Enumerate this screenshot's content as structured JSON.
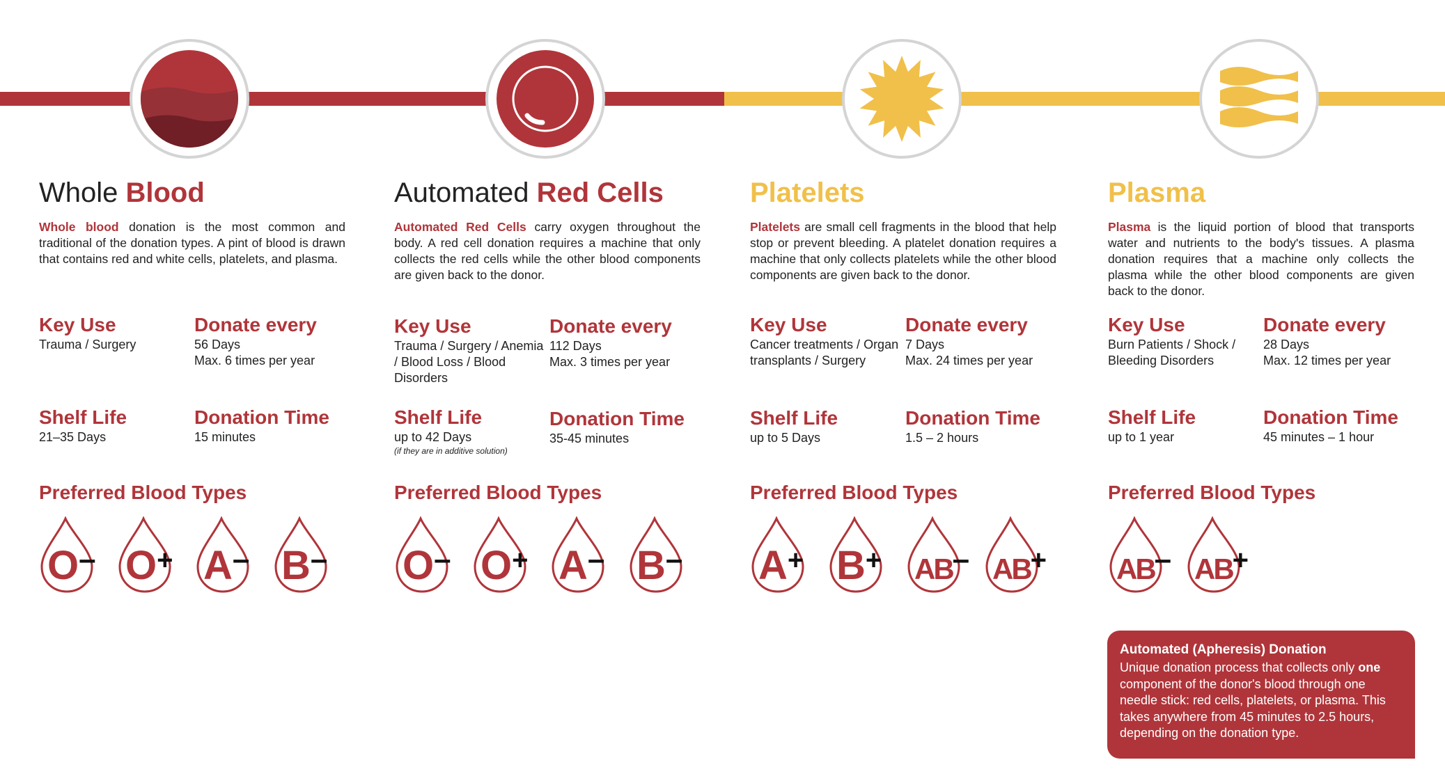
{
  "colors": {
    "red": "#b0353a",
    "yellow": "#f0c04a",
    "ring": "#d4d4d4"
  },
  "columns": [
    {
      "icon": "whole-blood-icon",
      "title_plain": "Whole ",
      "title_highlight": "Blood",
      "desc_highlight": "Whole blood",
      "desc_rest": " donation is the most common and traditional of the donation types. A pint of blood is drawn that contains red and white cells, platelets, and plasma.",
      "key_use_label": "Key Use",
      "key_use": "Trauma / Surgery",
      "donate_every_label": "Donate every",
      "donate_every_1": "56 Days",
      "donate_every_2": "Max. 6 times per year",
      "shelf_life_label": "Shelf Life",
      "shelf_life": "21–35 Days",
      "shelf_life_note": "",
      "donation_time_label": "Donation Time",
      "donation_time": "15 minutes",
      "preferred_label": "Preferred Blood Types",
      "types": [
        {
          "letter": "O",
          "sign": "–"
        },
        {
          "letter": "O",
          "sign": "+"
        },
        {
          "letter": "A",
          "sign": "–"
        },
        {
          "letter": "B",
          "sign": "–"
        }
      ]
    },
    {
      "icon": "red-cell-icon",
      "title_plain": "Automated ",
      "title_highlight": "Red Cells",
      "desc_highlight": "Automated Red Cells",
      "desc_rest": " carry oxygen throughout the body. A red cell donation requires a machine that only collects the red cells while the other blood components are given back to the donor.",
      "key_use_label": "Key Use",
      "key_use": "Trauma / Surgery / Anemia / Blood Loss / Blood Disorders",
      "donate_every_label": "Donate every",
      "donate_every_1": "112 Days",
      "donate_every_2": "Max. 3 times per year",
      "shelf_life_label": "Shelf Life",
      "shelf_life": "up to 42 Days",
      "shelf_life_note": "(if they are in additive solution)",
      "donation_time_label": "Donation Time",
      "donation_time": "35-45 minutes",
      "preferred_label": "Preferred Blood Types",
      "types": [
        {
          "letter": "O",
          "sign": "–"
        },
        {
          "letter": "O",
          "sign": "+"
        },
        {
          "letter": "A",
          "sign": "–"
        },
        {
          "letter": "B",
          "sign": "–"
        }
      ]
    },
    {
      "icon": "platelet-icon",
      "title_plain": "",
      "title_highlight": "Platelets",
      "desc_highlight": "Platelets",
      "desc_rest": " are small cell fragments in the blood that help stop or prevent bleeding. A platelet donation requires a machine that only collects platelets while the other blood components are given back to the donor.",
      "key_use_label": "Key Use",
      "key_use": "Cancer treatments / Organ transplants / Surgery",
      "donate_every_label": "Donate every",
      "donate_every_1": "7 Days",
      "donate_every_2": "Max. 24 times per year",
      "shelf_life_label": "Shelf Life",
      "shelf_life": "up to 5 Days",
      "shelf_life_note": "",
      "donation_time_label": "Donation Time",
      "donation_time": "1.5 – 2 hours",
      "preferred_label": "Preferred Blood Types",
      "types": [
        {
          "letter": "A",
          "sign": "+"
        },
        {
          "letter": "B",
          "sign": "+"
        },
        {
          "letter": "AB",
          "sign": "–"
        },
        {
          "letter": "AB",
          "sign": "+"
        }
      ]
    },
    {
      "icon": "plasma-icon",
      "title_plain": "",
      "title_highlight": "Plasma",
      "desc_highlight": "Plasma",
      "desc_rest": " is the liquid portion of blood that transports water and nutrients to the body's tissues. A plasma donation requires that a machine only collects the plasma while the other blood components are given back to the donor.",
      "key_use_label": "Key Use",
      "key_use": "Burn Patients / Shock / Bleeding Disorders",
      "donate_every_label": "Donate every",
      "donate_every_1": "28 Days",
      "donate_every_2": "Max. 12 times per year",
      "shelf_life_label": "Shelf Life",
      "shelf_life": "up to 1 year",
      "shelf_life_note": "",
      "donation_time_label": "Donation Time",
      "donation_time": "45 minutes – 1 hour",
      "preferred_label": "Preferred Blood Types",
      "types": [
        {
          "letter": "AB",
          "sign": "–"
        },
        {
          "letter": "AB",
          "sign": "+"
        }
      ]
    }
  ],
  "callout": {
    "title": "Automated (Apheresis) Donation",
    "text_before": "Unique donation process that collects only ",
    "text_bold": "one",
    "text_after": " component of the donor's blood through one needle stick: red cells, platelets, or plasma. This takes anywhere from 45 minutes to 2.5 hours, depending on the donation type."
  }
}
